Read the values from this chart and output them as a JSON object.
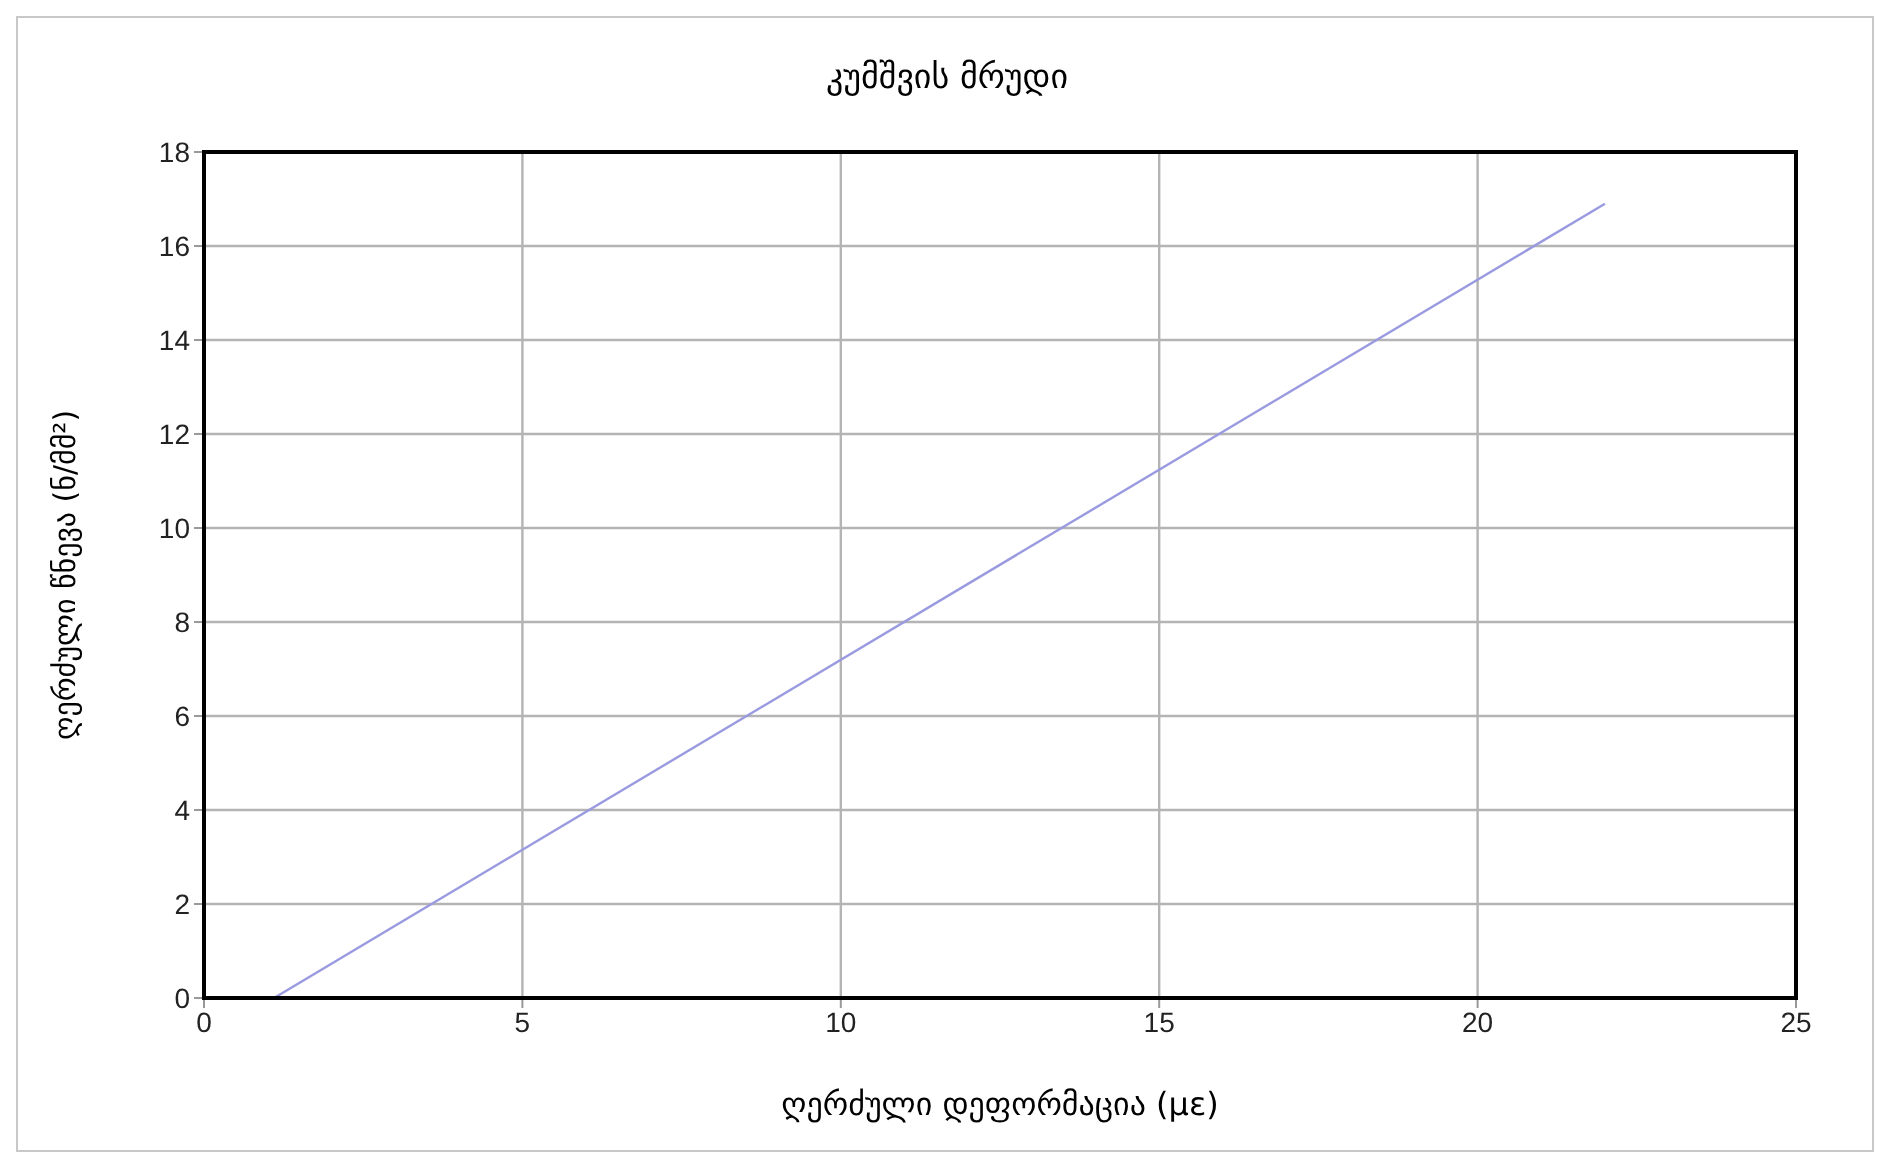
{
  "chart_data": {
    "type": "line",
    "title": "კუმშვის მრუდი",
    "xlabel": "ღერძული დეფორმაცია (με)",
    "ylabel": "ღერძული წნევა (ნ/მმ²)",
    "x": [
      1.1,
      22
    ],
    "series": [
      {
        "color": "#9a9ae0",
        "values": [
          0,
          16.9
        ]
      }
    ],
    "xlim": [
      0,
      25
    ],
    "xticks": [
      0,
      5,
      10,
      15,
      20,
      25
    ],
    "ylim": [
      0,
      18
    ],
    "yticks": [
      0,
      2,
      4,
      6,
      8,
      10,
      12,
      14,
      16,
      18
    ],
    "grid": true,
    "line_style": "solid"
  }
}
